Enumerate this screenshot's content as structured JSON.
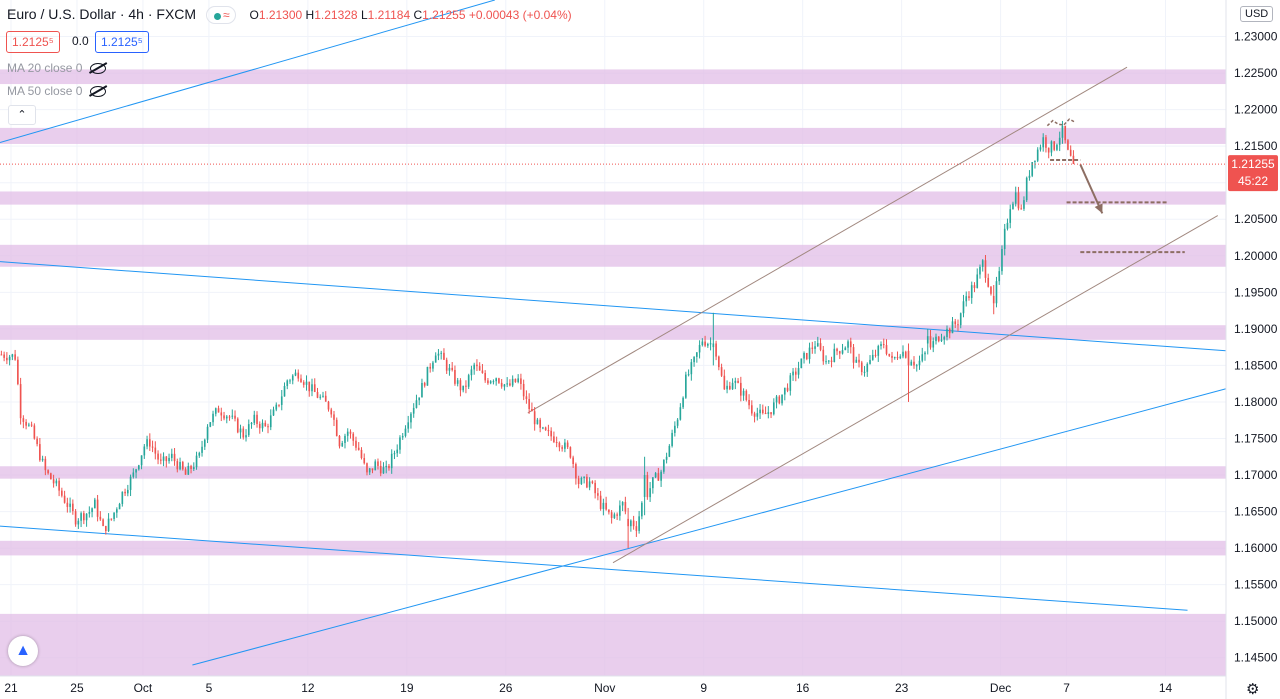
{
  "header": {
    "symbol": "Euro / U.S. Dollar",
    "interval": "4h",
    "exchange": "FXCM",
    "status_icon": "wave-icon",
    "status_glyph": "≈",
    "open_label": "O",
    "open": "1.21300",
    "high_label": "H",
    "high": "1.21328",
    "low_label": "L",
    "low": "1.21184",
    "close_label": "C",
    "close": "1.21255",
    "change": "+0.00043 (+0.04%)"
  },
  "trade": {
    "sell": "1.2125⁵",
    "spread": "0.0",
    "buy": "1.2125⁵"
  },
  "indicators": [
    {
      "label": "MA 20 close 0"
    },
    {
      "label": "MA 50 close 0"
    }
  ],
  "collapse_glyph": "⌃",
  "currency": "USD",
  "price_label": "1.21255",
  "countdown": "45:22",
  "colors": {
    "up": "#26a69a",
    "down": "#ef5350",
    "zone": "#e1bee7",
    "trend": "#2196f3",
    "channel": "#a1887f",
    "plan": "#8d6e63"
  },
  "chart_data": {
    "type": "candlestick",
    "timeframe": "4h",
    "ylim": [
      1.1425,
      1.235
    ],
    "y_ticks": [
      "1.14500",
      "1.15000",
      "1.15500",
      "1.16000",
      "1.16500",
      "1.17000",
      "1.17500",
      "1.18000",
      "1.18500",
      "1.19000",
      "1.19500",
      "1.20000",
      "1.20500",
      "1.21000",
      "1.21500",
      "1.22000",
      "1.22500",
      "1.23000"
    ],
    "x_ticks": [
      "21",
      "25",
      "Oct",
      "5",
      "12",
      "19",
      "26",
      "Nov",
      "9",
      "16",
      "23",
      "Dec",
      "7",
      "14"
    ],
    "x_tick_slots": [
      4,
      28,
      52,
      76,
      112,
      148,
      184,
      220,
      256,
      292,
      328,
      364,
      388,
      424
    ],
    "x_range_slots": [
      0,
      446
    ],
    "last_price": 1.21255,
    "zones": [
      [
        1.2235,
        1.2255
      ],
      [
        1.2153,
        1.2175
      ],
      [
        1.207,
        1.2088
      ],
      [
        1.1985,
        1.2015
      ],
      [
        1.1885,
        1.1905
      ],
      [
        1.1695,
        1.1712
      ],
      [
        1.159,
        1.161
      ],
      [
        1.1425,
        1.151
      ]
    ],
    "trend_lines": [
      {
        "from": [
          0,
          1.2155
        ],
        "to": [
          180,
          1.235
        ]
      },
      {
        "from": [
          0,
          1.1992
        ],
        "to": [
          446,
          1.187
        ]
      },
      {
        "from": [
          0,
          1.163
        ],
        "to": [
          432,
          1.1515
        ]
      },
      {
        "from": [
          70,
          1.144
        ],
        "to": [
          446,
          1.1818
        ]
      }
    ],
    "channel_lines": [
      {
        "from": [
          192,
          1.1785
        ],
        "to": [
          410,
          1.2258
        ]
      },
      {
        "from": [
          223,
          1.158
        ],
        "to": [
          443,
          1.2055
        ]
      }
    ],
    "projection": {
      "levels": [
        {
          "from": [
            382,
            1.2131
          ],
          "to": [
            393,
            1.2131
          ]
        },
        {
          "from": [
            388,
            1.2073
          ],
          "to": [
            425,
            1.2073
          ]
        },
        {
          "from": [
            393,
            1.2005
          ],
          "to": [
            431,
            1.2005
          ]
        }
      ],
      "arrow": {
        "from": [
          393,
          1.2125
        ],
        "to": [
          401,
          1.2058
        ]
      },
      "top_arc": [
        [
          381,
          1.2178
        ],
        [
          383,
          1.2185
        ],
        [
          385,
          1.218
        ],
        [
          387,
          1.2179
        ],
        [
          389,
          1.2187
        ],
        [
          391,
          1.2183
        ]
      ]
    },
    "anchors": [
      [
        0,
        1.1865
      ],
      [
        5,
        1.1862
      ],
      [
        7,
        1.1785
      ],
      [
        11,
        1.176
      ],
      [
        16,
        1.1705
      ],
      [
        20,
        1.1685
      ],
      [
        24,
        1.166
      ],
      [
        27,
        1.164
      ],
      [
        32,
        1.165
      ],
      [
        34,
        1.166
      ],
      [
        37,
        1.1625
      ],
      [
        40,
        1.164
      ],
      [
        44,
        1.1675
      ],
      [
        48,
        1.17
      ],
      [
        52,
        1.174
      ],
      [
        54,
        1.1745
      ],
      [
        58,
        1.1715
      ],
      [
        62,
        1.1725
      ],
      [
        67,
        1.17
      ],
      [
        72,
        1.1725
      ],
      [
        75,
        1.177
      ],
      [
        79,
        1.179
      ],
      [
        83,
        1.178
      ],
      [
        88,
        1.1755
      ],
      [
        92,
        1.1775
      ],
      [
        96,
        1.1765
      ],
      [
        100,
        1.179
      ],
      [
        104,
        1.183
      ],
      [
        108,
        1.184
      ],
      [
        112,
        1.182
      ],
      [
        116,
        1.1805
      ],
      [
        120,
        1.179
      ],
      [
        123,
        1.1745
      ],
      [
        126,
        1.176
      ],
      [
        130,
        1.1735
      ],
      [
        133,
        1.17
      ],
      [
        136,
        1.1715
      ],
      [
        140,
        1.1705
      ],
      [
        144,
        1.174
      ],
      [
        148,
        1.178
      ],
      [
        153,
        1.182
      ],
      [
        158,
        1.187
      ],
      [
        161,
        1.1855
      ],
      [
        165,
        1.183
      ],
      [
        168,
        1.1815
      ],
      [
        172,
        1.185
      ],
      [
        176,
        1.183
      ],
      [
        180,
        1.1835
      ],
      [
        184,
        1.182
      ],
      [
        188,
        1.183
      ],
      [
        191,
        1.18
      ],
      [
        196,
        1.176
      ],
      [
        202,
        1.175
      ],
      [
        207,
        1.173
      ],
      [
        210,
        1.169
      ],
      [
        214,
        1.169
      ],
      [
        218,
        1.166
      ],
      [
        222,
        1.164
      ],
      [
        226,
        1.166
      ],
      [
        228,
        1.164
      ],
      [
        231,
        1.163
      ],
      [
        233,
        1.166
      ],
      [
        237,
        1.169
      ],
      [
        240,
        1.1705
      ],
      [
        243,
        1.174
      ],
      [
        246,
        1.178
      ],
      [
        249,
        1.183
      ],
      [
        252,
        1.1855
      ],
      [
        255,
        1.1885
      ],
      [
        258,
        1.188
      ],
      [
        260,
        1.187
      ],
      [
        263,
        1.1815
      ],
      [
        266,
        1.183
      ],
      [
        270,
        1.181
      ],
      [
        273,
        1.179
      ],
      [
        277,
        1.178
      ],
      [
        280,
        1.179
      ],
      [
        284,
        1.181
      ],
      [
        288,
        1.1835
      ],
      [
        292,
        1.186
      ],
      [
        296,
        1.188
      ],
      [
        300,
        1.1855
      ],
      [
        304,
        1.187
      ],
      [
        308,
        1.188
      ],
      [
        311,
        1.185
      ],
      [
        314,
        1.1845
      ],
      [
        317,
        1.186
      ],
      [
        321,
        1.188
      ],
      [
        324,
        1.1855
      ],
      [
        327,
        1.187
      ],
      [
        330,
        1.1865
      ],
      [
        333,
        1.185
      ],
      [
        337,
        1.187
      ],
      [
        341,
        1.189
      ],
      [
        345,
        1.19
      ],
      [
        348,
        1.191
      ],
      [
        351,
        1.1945
      ],
      [
        354,
        1.196
      ],
      [
        357,
        1.199
      ],
      [
        359,
        1.1965
      ],
      [
        361,
        1.194
      ],
      [
        363,
        1.1975
      ],
      [
        365,
        1.203
      ],
      [
        367,
        1.207
      ],
      [
        369,
        1.2085
      ],
      [
        371,
        1.206
      ],
      [
        373,
        1.21
      ],
      [
        375,
        1.213
      ],
      [
        377,
        1.2145
      ],
      [
        379,
        1.216
      ],
      [
        381,
        1.2148
      ],
      [
        383,
        1.215
      ],
      [
        385,
        1.2165
      ],
      [
        386,
        1.217
      ],
      [
        388,
        1.214
      ],
      [
        390,
        1.2125
      ]
    ],
    "extra_candles": [
      {
        "i": 228,
        "o": 1.164,
        "h": 1.1655,
        "l": 1.16,
        "c": 1.163
      },
      {
        "i": 234,
        "o": 1.167,
        "h": 1.1725,
        "l": 1.1645,
        "c": 1.17
      },
      {
        "i": 259,
        "o": 1.1875,
        "h": 1.1922,
        "l": 1.185,
        "c": 1.188
      },
      {
        "i": 330,
        "o": 1.187,
        "h": 1.188,
        "l": 1.18,
        "c": 1.185
      },
      {
        "i": 337,
        "o": 1.188,
        "h": 1.19,
        "l": 1.1865,
        "c": 1.189
      },
      {
        "i": 361,
        "o": 1.1945,
        "h": 1.196,
        "l": 1.192,
        "c": 1.1935
      }
    ]
  }
}
